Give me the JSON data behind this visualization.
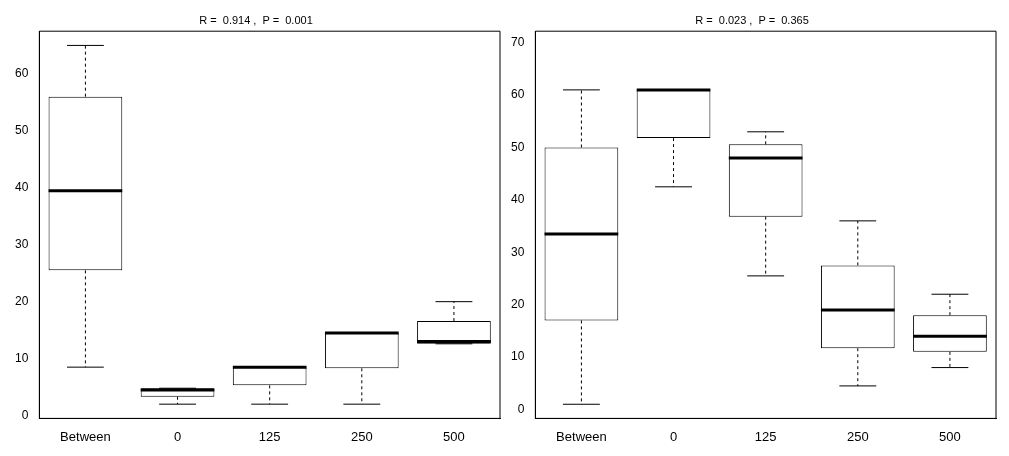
{
  "chart_data": [
    {
      "type": "box",
      "title": "R =  0.914 ,  P =  0.001",
      "categories": [
        "Between",
        "0",
        "125",
        "250",
        "500"
      ],
      "boxes": [
        {
          "low": 8.5,
          "q1": 25.5,
          "median": 39.5,
          "q3": 56,
          "high": 65
        },
        {
          "low": 2,
          "q1": 3.3,
          "median": 4.5,
          "q3": 4.8,
          "high": 4.8
        },
        {
          "low": 2,
          "q1": 5.3,
          "median": 8.5,
          "q3": 8.5,
          "high": 8.5
        },
        {
          "low": 2,
          "q1": 8.3,
          "median": 14.5,
          "q3": 14.5,
          "high": 14.5
        },
        {
          "low": 12.6,
          "q1": 12.6,
          "median": 13,
          "q3": 16.6,
          "high": 20
        }
      ],
      "ylim": [
        -0.5,
        67.5
      ],
      "yticks": [
        0,
        10,
        20,
        30,
        40,
        50,
        60
      ],
      "grid": false,
      "legend": false
    },
    {
      "type": "box",
      "title": "R =  0.023 ,  P =  0.365",
      "categories": [
        "Between",
        "0",
        "125",
        "250",
        "500"
      ],
      "boxes": [
        {
          "low": 1,
          "q1": 17,
          "median": 33.5,
          "q3": 50,
          "high": 61
        },
        {
          "low": 42.5,
          "q1": 51.8,
          "median": 61,
          "q3": 61,
          "high": 61
        },
        {
          "low": 25.5,
          "q1": 36.8,
          "median": 48,
          "q3": 50.6,
          "high": 53
        },
        {
          "low": 4.5,
          "q1": 11.7,
          "median": 19,
          "q3": 27.5,
          "high": 36
        },
        {
          "low": 8,
          "q1": 11,
          "median": 14,
          "q3": 18,
          "high": 22
        }
      ],
      "ylim": [
        -1.7,
        72.2
      ],
      "yticks": [
        0,
        10,
        20,
        30,
        40,
        50,
        60,
        70
      ],
      "grid": false,
      "legend": false
    }
  ]
}
